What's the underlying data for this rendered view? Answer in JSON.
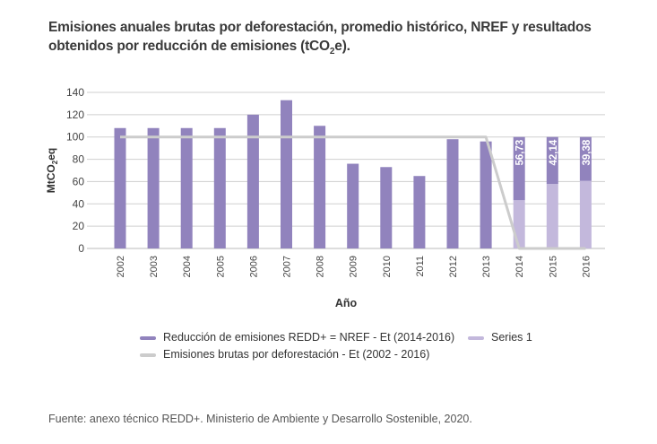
{
  "chart_data": {
    "type": "bar",
    "title_part1": "Emisiones anuales brutas por deforestación, promedio histórico, NREF y resultados obtenidos por  reducción de emisiones (tCO",
    "title_sub": "2",
    "title_part2": "e).",
    "xlabel": "Año",
    "ylabel_main": "MtCO",
    "ylabel_sub": "2",
    "ylabel_end": "eq",
    "ylim": [
      0,
      140
    ],
    "yticks": [
      0,
      20,
      40,
      60,
      80,
      100,
      120,
      140
    ],
    "categories": [
      "2002",
      "2003",
      "2004",
      "2005",
      "2006",
      "2007",
      "2008",
      "2009",
      "2010",
      "2011",
      "2012",
      "2013",
      "2014",
      "2015",
      "2016"
    ],
    "series": [
      {
        "name": "Series 1",
        "type": "bar-stacked",
        "color": "#c3b8dc",
        "values": [
          null,
          null,
          null,
          null,
          null,
          null,
          null,
          null,
          null,
          null,
          null,
          null,
          43.27,
          57.86,
          60.62
        ]
      },
      {
        "name": "Reducción de emisiones REDD+ = NREF - Et (2014-2016)",
        "type": "bar-stacked",
        "color": "#9183bd",
        "values": [
          108,
          108,
          108,
          108,
          120,
          133,
          110,
          76,
          73,
          65,
          98,
          96,
          56.73,
          42.14,
          39.38
        ],
        "data_labels": [
          null,
          null,
          null,
          null,
          null,
          null,
          null,
          null,
          null,
          null,
          null,
          null,
          "56,73",
          "42,14",
          "39,38"
        ]
      },
      {
        "name": "Emisiones brutas por deforestación - Et (2002 - 2016)",
        "type": "line",
        "color": "#cccccc",
        "values": [
          100,
          100,
          100,
          100,
          100,
          100,
          100,
          100,
          100,
          100,
          100,
          100,
          0,
          0,
          0
        ]
      }
    ],
    "legend": {
      "position": "bottom",
      "items": [
        {
          "label": "Reducción de emisiones REDD+ = NREF - Et (2014-2016)",
          "color": "#9183bd"
        },
        {
          "label": "Series 1",
          "color": "#c3b8dc"
        },
        {
          "label": "Emisiones brutas por deforestación - Et (2002 - 2016)",
          "color": "#cccccc"
        }
      ]
    },
    "grid": true
  },
  "source": "Fuente: anexo técnico REDD+. Ministerio de Ambiente y Desarrollo Sostenible, 2020."
}
